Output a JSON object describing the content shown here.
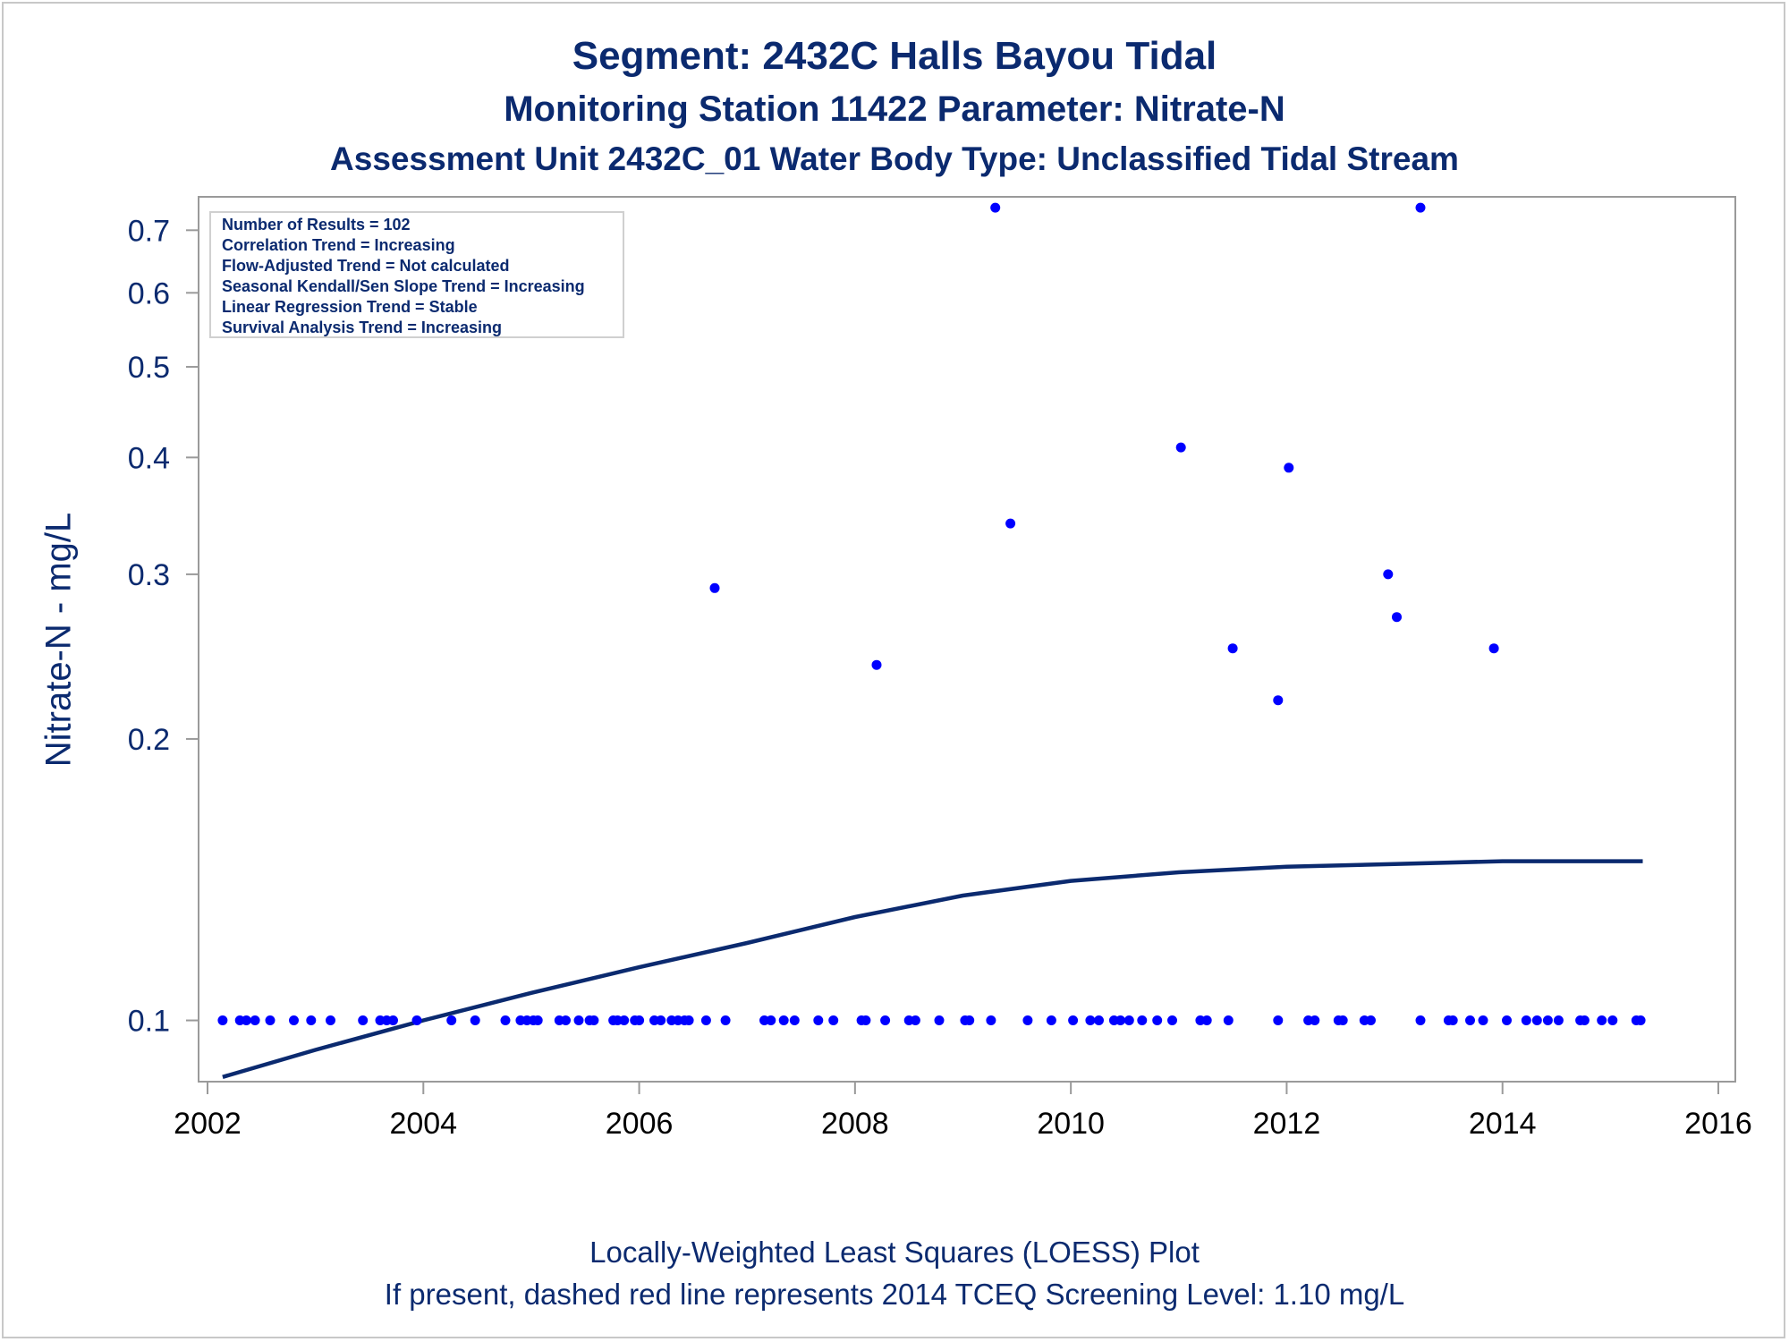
{
  "titles": {
    "line1": "Segment: 2432C  Halls Bayou Tidal",
    "line2": "Monitoring Station 11422 Parameter: Nitrate-N",
    "line3": "Assessment Unit 2432C_01   Water Body Type: Unclassified Tidal Stream"
  },
  "footnotes": {
    "line1": "Locally-Weighted Least Squares (LOESS) Plot",
    "line2": "If present, dashed red line represents 2014 TCEQ Screening Level: 1.10 mg/L"
  },
  "stats_box": [
    "Number of Results = 102",
    "Correlation Trend = Increasing",
    "Flow-Adjusted Trend = Not calculated",
    "Seasonal Kendall/Sen Slope Trend = Increasing",
    "Linear Regression Trend = Stable",
    "Survival Analysis Trend = Increasing"
  ],
  "colors": {
    "text": "#0b2a6f",
    "points": "#0000ff",
    "loess_line": "#0b2a6f",
    "axis": "#9a9a9a"
  },
  "chart_data": {
    "type": "scatter",
    "ylabel": "Nitrate-N - mg/L",
    "xlabel": "",
    "x_ticks": [
      "2002",
      "2004",
      "2006",
      "2008",
      "2010",
      "2012",
      "2014",
      "2016"
    ],
    "y_ticks": [
      "0.1",
      "0.2",
      "0.3",
      "0.4",
      "0.5",
      "0.6",
      "0.7"
    ],
    "y_tick_values": [
      0.1,
      0.2,
      0.3,
      0.4,
      0.5,
      0.6,
      0.7
    ],
    "xlim": [
      2002,
      2016
    ],
    "ylim": [
      0.086,
      0.76
    ],
    "yscale": "log",
    "grid": false,
    "series": [
      {
        "type": "scatter",
        "x": [
          2002.14,
          2002.3,
          2002.36,
          2002.44,
          2002.58,
          2002.8,
          2002.96,
          2003.14,
          2003.44,
          2003.6,
          2003.66,
          2003.72,
          2003.94,
          2004.26,
          2004.48,
          2004.76,
          2004.9,
          2004.96,
          2005.02,
          2005.06,
          2005.26,
          2005.32,
          2005.44,
          2005.54,
          2005.58,
          2005.76,
          2005.8,
          2005.86,
          2005.96,
          2006.0,
          2006.14,
          2006.2,
          2006.3,
          2006.36,
          2006.42,
          2006.46,
          2006.62,
          2006.8,
          2007.16,
          2007.22,
          2007.34,
          2007.44,
          2007.66,
          2007.8,
          2008.06,
          2008.1,
          2008.28,
          2008.5,
          2008.56,
          2008.78,
          2009.02,
          2009.06,
          2009.26,
          2009.6,
          2009.82,
          2010.02,
          2010.18,
          2010.26,
          2010.4,
          2010.46,
          2010.54,
          2010.66,
          2010.8,
          2010.94,
          2011.2,
          2011.26,
          2011.46,
          2011.92,
          2012.2,
          2012.26,
          2012.48,
          2012.52,
          2012.72,
          2012.78,
          2013.24,
          2013.5,
          2013.54,
          2013.7,
          2013.82,
          2014.04,
          2014.22,
          2014.32,
          2014.42,
          2014.52,
          2014.72,
          2014.76,
          2014.92,
          2015.02,
          2015.24,
          2015.28,
          2006.7,
          2008.2,
          2009.3,
          2009.44,
          2011.02,
          2011.5,
          2011.92,
          2012.02,
          2012.94,
          2013.02,
          2013.24,
          2013.92
        ],
        "y": [
          0.1,
          0.1,
          0.1,
          0.1,
          0.1,
          0.1,
          0.1,
          0.1,
          0.1,
          0.1,
          0.1,
          0.1,
          0.1,
          0.1,
          0.1,
          0.1,
          0.1,
          0.1,
          0.1,
          0.1,
          0.1,
          0.1,
          0.1,
          0.1,
          0.1,
          0.1,
          0.1,
          0.1,
          0.1,
          0.1,
          0.1,
          0.1,
          0.1,
          0.1,
          0.1,
          0.1,
          0.1,
          0.1,
          0.1,
          0.1,
          0.1,
          0.1,
          0.1,
          0.1,
          0.1,
          0.1,
          0.1,
          0.1,
          0.1,
          0.1,
          0.1,
          0.1,
          0.1,
          0.1,
          0.1,
          0.1,
          0.1,
          0.1,
          0.1,
          0.1,
          0.1,
          0.1,
          0.1,
          0.1,
          0.1,
          0.1,
          0.1,
          0.1,
          0.1,
          0.1,
          0.1,
          0.1,
          0.1,
          0.1,
          0.1,
          0.1,
          0.1,
          0.1,
          0.1,
          0.1,
          0.1,
          0.1,
          0.1,
          0.1,
          0.1,
          0.1,
          0.1,
          0.1,
          0.1,
          0.1,
          0.29,
          0.24,
          0.74,
          0.34,
          0.41,
          0.25,
          0.22,
          0.39,
          0.3,
          0.27,
          0.74,
          0.25
        ]
      },
      {
        "type": "line",
        "x": [
          2002.14,
          2003.0,
          2004.0,
          2005.0,
          2006.0,
          2007.0,
          2008.0,
          2009.0,
          2010.0,
          2011.0,
          2012.0,
          2013.0,
          2014.0,
          2015.0,
          2015.3
        ],
        "y": [
          0.087,
          0.093,
          0.1,
          0.107,
          0.114,
          0.121,
          0.129,
          0.136,
          0.141,
          0.144,
          0.146,
          0.147,
          0.148,
          0.148,
          0.148
        ]
      }
    ]
  }
}
